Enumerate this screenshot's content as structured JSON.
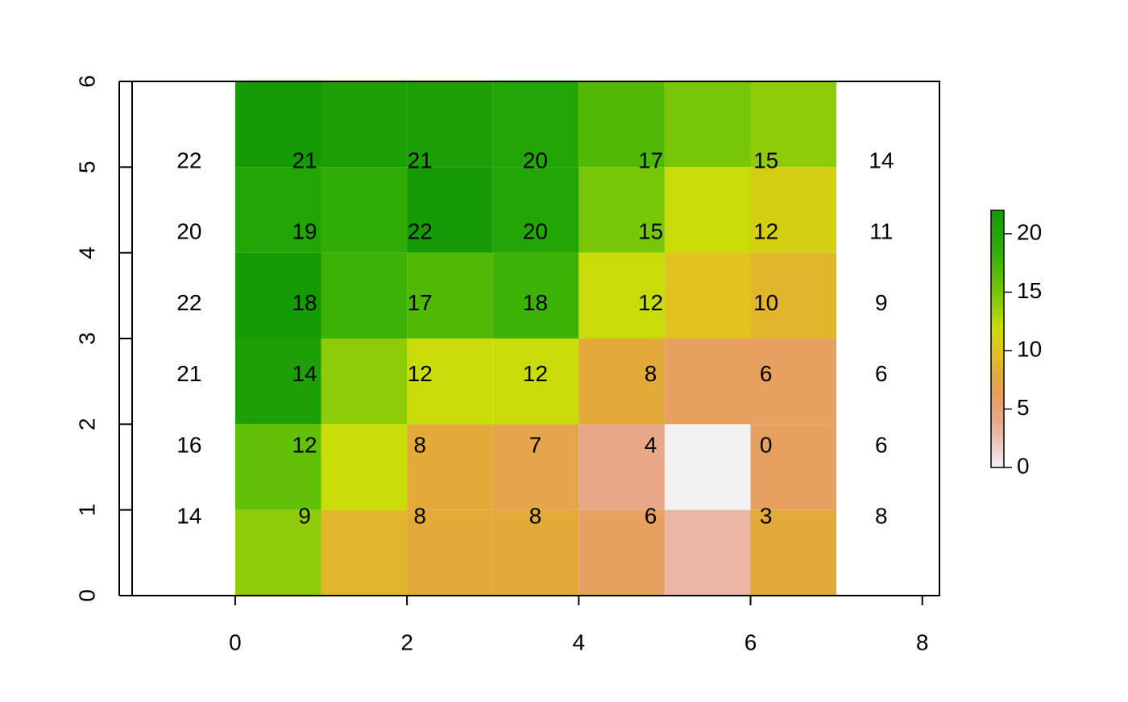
{
  "chart_data": {
    "type": "raster",
    "matrix": [
      [
        22,
        21,
        21,
        20,
        17,
        15,
        14
      ],
      [
        20,
        19,
        22,
        20,
        15,
        12,
        11
      ],
      [
        22,
        18,
        17,
        18,
        12,
        10,
        9
      ],
      [
        21,
        14,
        12,
        12,
        8,
        6,
        6
      ],
      [
        16,
        12,
        8,
        7,
        4,
        0,
        6
      ],
      [
        14,
        9,
        8,
        8,
        6,
        3,
        8
      ]
    ],
    "xlim": [
      -1.2,
      8.2
    ],
    "ylim": [
      0,
      6
    ],
    "xticks": [
      0,
      2,
      4,
      6,
      8
    ],
    "yticks": [
      0,
      1,
      2,
      3,
      4,
      5,
      6
    ],
    "zlim": [
      0,
      22
    ],
    "zticks": [
      0,
      5,
      10,
      15,
      20
    ],
    "colormap": [
      "#f2f2f2",
      "#ecc8c0",
      "#e8a888",
      "#e6a060",
      "#e2aa38",
      "#e2c21e",
      "#c8dc08",
      "#8ecc0a",
      "#62c006",
      "#3cb206",
      "#22a606",
      "#169a04"
    ]
  }
}
